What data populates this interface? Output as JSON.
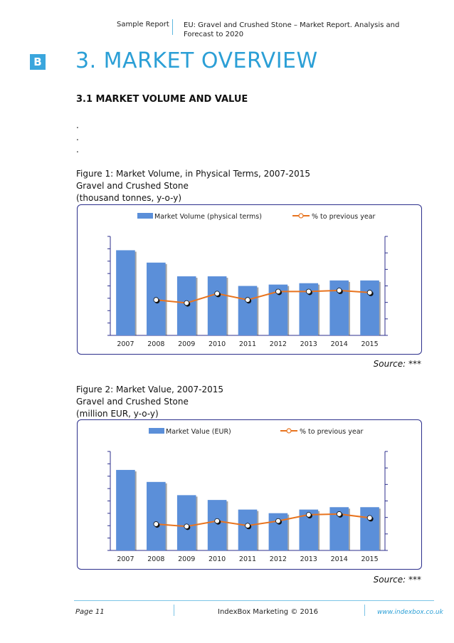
{
  "header": {
    "left": "Sample Report",
    "right": "EU: Gravel and Crushed Stone – Market Report. Analysis and Forecast to 2020"
  },
  "section": {
    "badge": "B",
    "title": "3. MARKET OVERVIEW",
    "subtitle": "3.1 MARKET VOLUME AND VALUE"
  },
  "dots": [
    ".",
    ".",
    "."
  ],
  "figure1": {
    "caption1": "Figure 1: Market Volume, in Physical Terms, 2007-2015",
    "caption2": "Gravel and Crushed Stone",
    "caption3": "(thousand tonnes, y-o-y)",
    "source": "Source: ***"
  },
  "figure2": {
    "caption1": "Figure 2: Market Value, 2007-2015",
    "caption2": "Gravel and Crushed Stone",
    "caption3": "(million EUR, y-o-y)",
    "source": "Source: ***"
  },
  "colors": {
    "bar": "#5b8fd9",
    "line": "#e8741f",
    "frame": "#2c2f8c",
    "accent": "#2b9fd6"
  },
  "chart_data": [
    {
      "type": "bar",
      "categories": [
        "2007",
        "2008",
        "2009",
        "2010",
        "2011",
        "2012",
        "2013",
        "2014",
        "2015"
      ],
      "series": [
        {
          "name": "Market Volume (physical terms)",
          "kind": "bar",
          "axis": "left",
          "values": [
            6.2,
            5.3,
            4.3,
            4.3,
            3.6,
            3.7,
            3.8,
            4.0,
            4.0
          ]
        },
        {
          "name": "% to previous year",
          "kind": "line",
          "axis": "right",
          "values": [
            null,
            1.7,
            1.55,
            2.0,
            1.7,
            2.1,
            2.1,
            2.15,
            2.05
          ]
        }
      ],
      "ylim_left": [
        0,
        7
      ],
      "ylim_right": [
        0,
        4.6
      ],
      "legend": "top"
    },
    {
      "type": "bar",
      "categories": [
        "2007",
        "2008",
        "2009",
        "2010",
        "2011",
        "2012",
        "2013",
        "2014",
        "2015"
      ],
      "series": [
        {
          "name": "Market Value (EUR)",
          "kind": "bar",
          "axis": "left",
          "values": [
            6.7,
            5.7,
            4.6,
            4.2,
            3.4,
            3.1,
            3.4,
            3.6,
            3.6
          ]
        },
        {
          "name": "% to previous year",
          "kind": "line",
          "axis": "right",
          "values": [
            null,
            1.7,
            1.55,
            1.9,
            1.6,
            1.9,
            2.3,
            2.35,
            2.1
          ]
        }
      ],
      "ylim_left": [
        0,
        8
      ],
      "ylim_right": [
        0,
        6.2
      ],
      "legend": "top"
    }
  ],
  "footer": {
    "page": "Page 11",
    "copyright": "IndexBox Marketing © 2016",
    "url": "www.indexbox.co.uk"
  }
}
